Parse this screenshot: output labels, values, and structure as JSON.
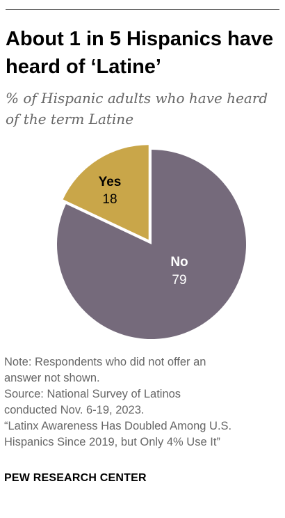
{
  "title": "About 1 in 5 Hispanics have heard of ‘Latine’",
  "subtitle": "% of Hispanic adults who have heard of the term Latine",
  "chart_data": {
    "type": "pie",
    "slices": [
      {
        "label": "Yes",
        "value": 18,
        "color": "#c9a649"
      },
      {
        "label": "No",
        "value": 79,
        "color": "#756a7b"
      }
    ]
  },
  "notes": {
    "note": "Note: Respondents who did not offer an\nanswer not shown.",
    "source": "Source: National Survey of Latinos\nconducted Nov. 6-19, 2023.",
    "report": "“Latinx Awareness Has Doubled Among U.S.\nHispanics Since 2019, but Only 4% Use It”"
  },
  "footer": "PEW RESEARCH CENTER"
}
